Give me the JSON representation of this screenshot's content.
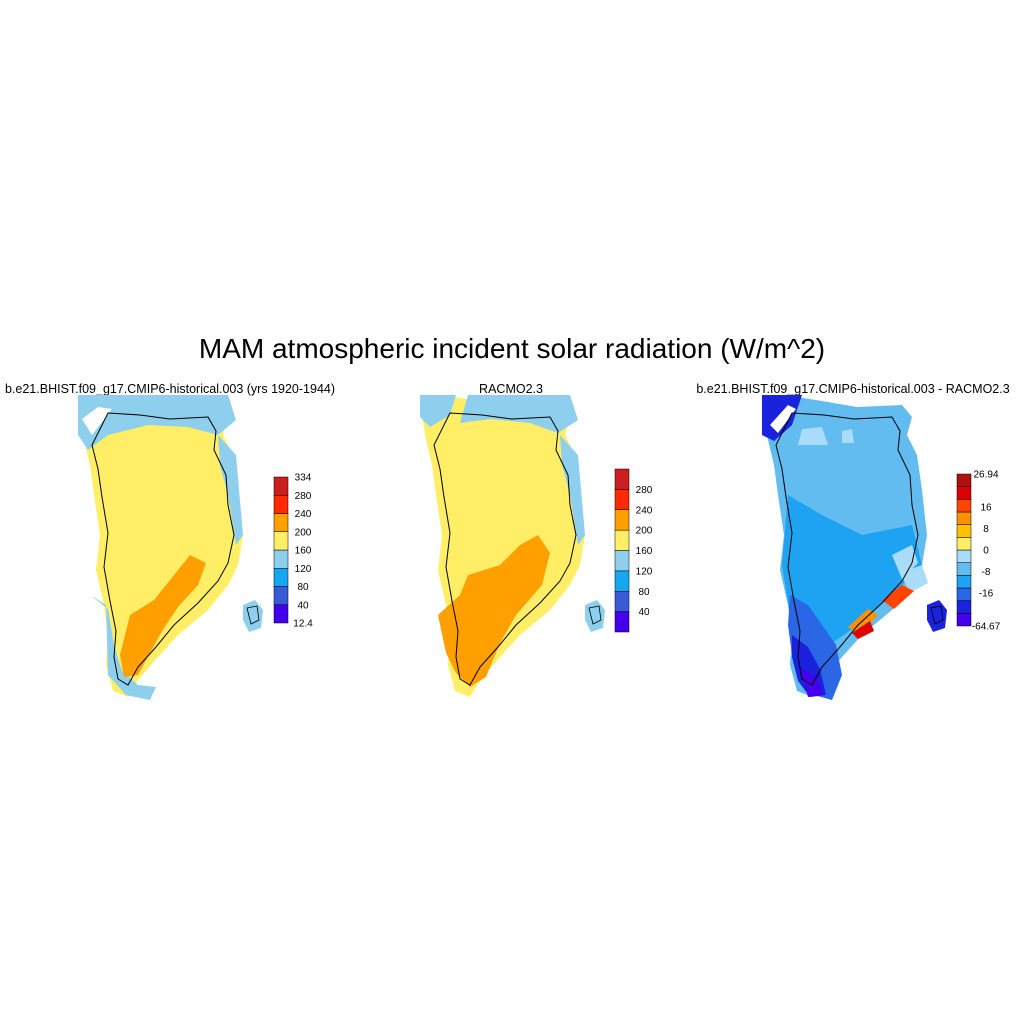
{
  "title": "MAM atmospheric incident solar radiation (W/m^2)",
  "colors": {
    "abs_levels": [
      "#4400ee",
      "#3a5ad8",
      "#14a8f0",
      "#8ecfee",
      "#ffee66",
      "#ffa000",
      "#ff2a00",
      "#cc1e1e"
    ],
    "diff_levels": [
      "#4400ee",
      "#1a22dd",
      "#2a66e6",
      "#1ea3f2",
      "#62bcf0",
      "#a8dcf8",
      "#ffee66",
      "#ffc000",
      "#ff9000",
      "#ff4400",
      "#dd0000",
      "#b01010"
    ]
  },
  "panels": [
    {
      "id": "model",
      "title": "b.e21.BHIST.f09_g17.CMIP6-historical.003 (yrs 1920-1944)",
      "colorbar": {
        "labels": [
          "334",
          "280",
          "240",
          "200",
          "160",
          "120",
          "80",
          "40",
          "12.4"
        ]
      }
    },
    {
      "id": "obs",
      "title": "RACMO2.3",
      "colorbar": {
        "labels": [
          "280",
          "240",
          "200",
          "160",
          "120",
          "80",
          "40"
        ]
      }
    },
    {
      "id": "diff",
      "title": "b.e21.BHIST.f09_g17.CMIP6-historical.003 - RACMO2.3",
      "colorbar": {
        "labels": [
          "26.94",
          "16",
          "8",
          "0",
          "-8",
          "-16",
          "-64.67"
        ]
      }
    }
  ]
}
